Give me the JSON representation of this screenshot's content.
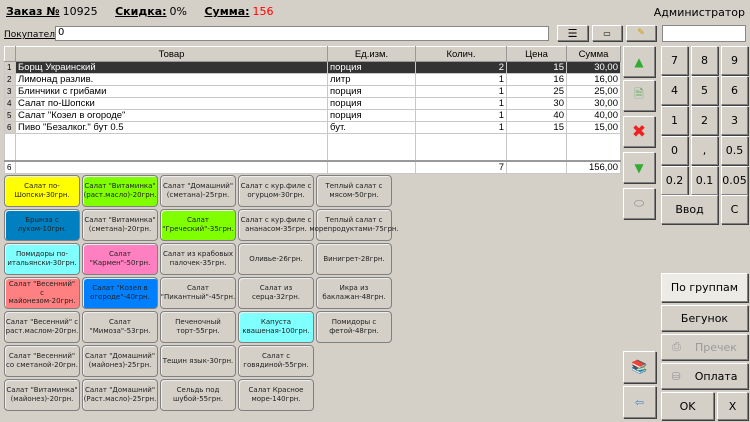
{
  "header": {
    "order_label": "Заказ №",
    "order_no": "10925",
    "discount_label": "Скидка:",
    "discount": "0%",
    "sum_label": "Сумма:",
    "sum": "156",
    "user": "Администратор"
  },
  "customer": {
    "label": "Покупатель",
    "value": "0"
  },
  "table": {
    "columns": [
      "Товар",
      "Ед.изм.",
      "Колич.",
      "Цена",
      "Сумма"
    ],
    "rows": [
      {
        "n": "1",
        "item": "Борщ Украинский",
        "unit": "порция",
        "qty": "2",
        "price": "15",
        "sum": "30,00"
      },
      {
        "n": "2",
        "item": "Лимонад разлив.",
        "unit": "литр",
        "qty": "1",
        "price": "16",
        "sum": "16,00"
      },
      {
        "n": "3",
        "item": "Блинчики с грибами",
        "unit": "порция",
        "qty": "1",
        "price": "25",
        "sum": "25,00"
      },
      {
        "n": "4",
        "item": "Салат по-Шопски",
        "unit": "порция",
        "qty": "1",
        "price": "30",
        "sum": "30,00"
      },
      {
        "n": "5",
        "item": "Салат \"Козел в огороде\"",
        "unit": "порция",
        "qty": "1",
        "price": "40",
        "sum": "40,00"
      },
      {
        "n": "6",
        "item": "Пиво \"Безалког.\" бут 0.5",
        "unit": "бут.",
        "qty": "1",
        "price": "15",
        "sum": "15,00"
      }
    ],
    "footer": {
      "count": "6",
      "qty": "7",
      "sum": "156,00"
    }
  },
  "tiles": [
    {
      "label": "Салат по-Шопски-30грн.",
      "color": "#ffff00"
    },
    {
      "label": "Салат \"Витаминка\" (раст.масло)-20грн.",
      "color": "#80ff00"
    },
    {
      "label": "Салат \"Домашний\" (сметана)-25грн.",
      "color": ""
    },
    {
      "label": "Салат с кур.филе с огурцом-30грн.",
      "color": ""
    },
    {
      "label": "Теплый салат с мясом-50грн.",
      "color": ""
    },
    {
      "label": "Брынза с луком-10грн.",
      "color": "#0080c0"
    },
    {
      "label": "Салат \"Витаминка\" (сметана)-20грн.",
      "color": ""
    },
    {
      "label": "Салат \"Греческий\"-35грн.",
      "color": "#80ff00"
    },
    {
      "label": "Салат с кур.филе с ананасом-35грн.",
      "color": ""
    },
    {
      "label": "Теплый салат с морепродуктами-75грн.",
      "color": ""
    },
    {
      "label": "Помидоры по-итальянски-30грн.",
      "color": "#80ffff"
    },
    {
      "label": "Салат \"Кармен\"-50грн.",
      "color": "#ff80c0"
    },
    {
      "label": "Салат из крабовых палочек-35грн.",
      "color": ""
    },
    {
      "label": "Оливье-26грн.",
      "color": ""
    },
    {
      "label": "Винигрет-28грн.",
      "color": ""
    },
    {
      "label": "Салат \"Весенний\" с майонезом-20грн.",
      "color": "#ff8080"
    },
    {
      "label": "Салат \"Козел в огороде\"-40грн.",
      "color": "#0080ff"
    },
    {
      "label": "Салат \"Пикантный\"-45грн.",
      "color": ""
    },
    {
      "label": "Салат из серца-32грн.",
      "color": ""
    },
    {
      "label": "Икра из баклажан-48грн.",
      "color": ""
    },
    {
      "label": "Салат \"Весенний\" с раст.маслом-20грн.",
      "color": ""
    },
    {
      "label": "Салат \"Мимоза\"-53грн.",
      "color": ""
    },
    {
      "label": "Печеночный торт-55грн.",
      "color": ""
    },
    {
      "label": "Капуста квашеная-100грн.",
      "color": "#80ffff"
    },
    {
      "label": "Помидоры с фетой-48грн.",
      "color": ""
    },
    {
      "label": "Салат \"Весенний\" со сметаной-20грн.",
      "color": ""
    },
    {
      "label": "Салат \"Домашний\" (майонез)-25грн.",
      "color": ""
    },
    {
      "label": "Тещин язык-30грн.",
      "color": ""
    },
    {
      "label": "Салат с говядиной-55грн.",
      "color": ""
    },
    null,
    {
      "label": "Салат \"Витаминка\" (майонез)-20грн.",
      "color": ""
    },
    {
      "label": "Салат \"Домашний\" (Раст.масло)-25грн.",
      "color": ""
    },
    {
      "label": "Сельдь под шубой-55грн.",
      "color": ""
    },
    {
      "label": "Салат Красное море-140грн.",
      "color": ""
    },
    null
  ],
  "numpad": [
    "7",
    "8",
    "9",
    "4",
    "5",
    "6",
    "1",
    "2",
    "3",
    "0",
    ",",
    "0.5",
    "0.2",
    "0.1",
    "0.05"
  ],
  "numpad_enter": "Ввод",
  "numpad_clear": "C",
  "right": {
    "groups": "По группам",
    "runner": "Бегунок",
    "precheck": "Пречек",
    "payment": "Оплата",
    "ok": "OK",
    "cancel": "X"
  }
}
